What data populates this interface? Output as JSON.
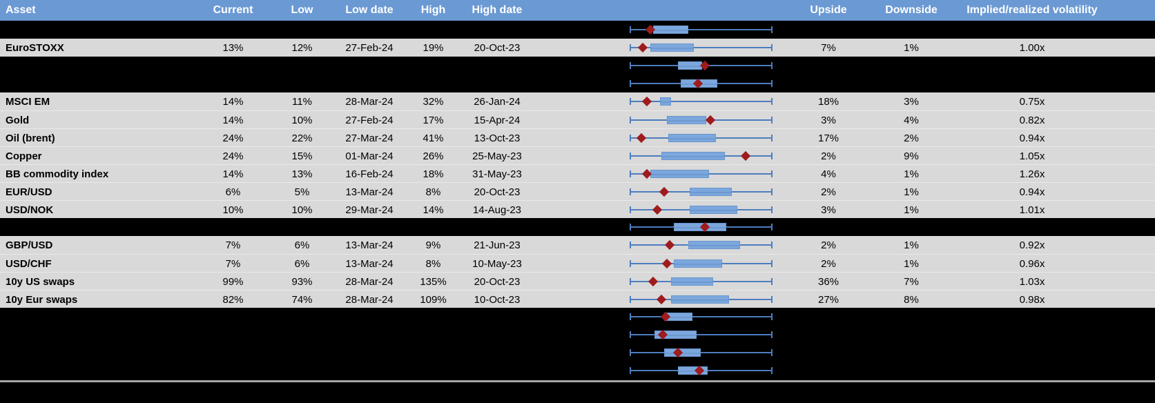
{
  "table": {
    "columns": {
      "asset": "Asset",
      "current": "Current",
      "low": "Low",
      "low_date": "Low date",
      "high": "High",
      "high_date": "High date",
      "upside": "Upside",
      "downside": "Downside",
      "implied_realized": "Implied/realized volatility"
    },
    "rows": [
      {
        "kind": "hidden",
        "box": [
          0.16,
          0.41
        ],
        "diamond": 0.14
      },
      {
        "kind": "data",
        "asset": "EuroSTOXX",
        "current": "13%",
        "low": "12%",
        "low_date": "27-Feb-24",
        "high": "19%",
        "high_date": "20-Oct-23",
        "upside": "7%",
        "downside": "1%",
        "implied_realized": "1.00x",
        "box": [
          0.14,
          0.45
        ],
        "diamond": 0.09
      },
      {
        "kind": "hidden",
        "box": [
          0.34,
          0.51
        ],
        "diamond": 0.53
      },
      {
        "kind": "hidden",
        "box": [
          0.36,
          0.62
        ],
        "diamond": 0.48
      },
      {
        "kind": "data",
        "asset": "MSCI EM",
        "current": "14%",
        "low": "11%",
        "low_date": "28-Mar-24",
        "high": "32%",
        "high_date": "26-Jan-24",
        "upside": "18%",
        "downside": "3%",
        "implied_realized": "0.75x",
        "box": [
          0.21,
          0.29
        ],
        "diamond": 0.12
      },
      {
        "kind": "data",
        "asset": "Gold",
        "current": "14%",
        "low": "10%",
        "low_date": "27-Feb-24",
        "high": "17%",
        "high_date": "15-Apr-24",
        "upside": "3%",
        "downside": "4%",
        "implied_realized": "0.82x",
        "box": [
          0.26,
          0.54
        ],
        "diamond": 0.57
      },
      {
        "kind": "data",
        "asset": "Oil (brent)",
        "current": "24%",
        "low": "22%",
        "low_date": "27-Mar-24",
        "high": "41%",
        "high_date": "13-Oct-23",
        "upside": "17%",
        "downside": "2%",
        "implied_realized": "0.94x",
        "box": [
          0.27,
          0.61
        ],
        "diamond": 0.08
      },
      {
        "kind": "data",
        "asset": "Copper",
        "current": "24%",
        "low": "15%",
        "low_date": "01-Mar-24",
        "high": "26%",
        "high_date": "25-May-23",
        "upside": "2%",
        "downside": "9%",
        "implied_realized": "1.05x",
        "box": [
          0.22,
          0.67
        ],
        "diamond": 0.82
      },
      {
        "kind": "data",
        "asset": "BB commodity index",
        "current": "14%",
        "low": "13%",
        "low_date": "16-Feb-24",
        "high": "18%",
        "high_date": "31-May-23",
        "upside": "4%",
        "downside": "1%",
        "implied_realized": "1.26x",
        "box": [
          0.14,
          0.56
        ],
        "diamond": 0.12
      },
      {
        "kind": "data",
        "asset": "EUR/USD",
        "current": "6%",
        "low": "5%",
        "low_date": "13-Mar-24",
        "high": "8%",
        "high_date": "20-Oct-23",
        "upside": "2%",
        "downside": "1%",
        "implied_realized": "0.94x",
        "box": [
          0.42,
          0.72
        ],
        "diamond": 0.24
      },
      {
        "kind": "data",
        "asset": "USD/NOK",
        "current": "10%",
        "low": "10%",
        "low_date": "29-Mar-24",
        "high": "14%",
        "high_date": "14-Aug-23",
        "upside": "3%",
        "downside": "1%",
        "implied_realized": "1.01x",
        "box": [
          0.42,
          0.76
        ],
        "diamond": 0.19
      },
      {
        "kind": "hidden",
        "box": [
          0.31,
          0.68
        ],
        "diamond": 0.53
      },
      {
        "kind": "data",
        "asset": "GBP/USD",
        "current": "7%",
        "low": "6%",
        "low_date": "13-Mar-24",
        "high": "9%",
        "high_date": "21-Jun-23",
        "upside": "2%",
        "downside": "1%",
        "implied_realized": "0.92x",
        "box": [
          0.41,
          0.78
        ],
        "diamond": 0.28
      },
      {
        "kind": "data",
        "asset": "USD/CHF",
        "current": "7%",
        "low": "6%",
        "low_date": "13-Mar-24",
        "high": "8%",
        "high_date": "10-May-23",
        "upside": "2%",
        "downside": "1%",
        "implied_realized": "0.96x",
        "box": [
          0.31,
          0.65
        ],
        "diamond": 0.26
      },
      {
        "kind": "data",
        "asset": "10y US swaps",
        "current": "99%",
        "low": "93%",
        "low_date": "28-Mar-24",
        "high": "135%",
        "high_date": "20-Oct-23",
        "upside": "36%",
        "downside": "7%",
        "implied_realized": "1.03x",
        "box": [
          0.29,
          0.59
        ],
        "diamond": 0.16
      },
      {
        "kind": "data",
        "asset": "10y Eur swaps",
        "current": "82%",
        "low": "74%",
        "low_date": "28-Mar-24",
        "high": "109%",
        "high_date": "10-Oct-23",
        "upside": "27%",
        "downside": "8%",
        "implied_realized": "0.98x",
        "box": [
          0.29,
          0.7
        ],
        "diamond": 0.22
      },
      {
        "kind": "hidden",
        "box": [
          0.24,
          0.44
        ],
        "diamond": 0.25
      },
      {
        "kind": "hidden",
        "box": [
          0.17,
          0.47
        ],
        "diamond": 0.23
      },
      {
        "kind": "hidden",
        "box": [
          0.24,
          0.5
        ],
        "diamond": 0.34
      },
      {
        "kind": "hidden",
        "box": [
          0.34,
          0.55
        ],
        "diamond": 0.49
      }
    ]
  },
  "colors": {
    "header_bg": "#6b99d3",
    "header_text": "#ffffff",
    "row_bg": "#d9d9d9",
    "hidden_row_bg": "#000000",
    "box_fill": "#7ba7dd",
    "whisker_line": "#4d7dbe",
    "diamond": "#9e1b1e",
    "separator_line": "#a6a6a6"
  }
}
